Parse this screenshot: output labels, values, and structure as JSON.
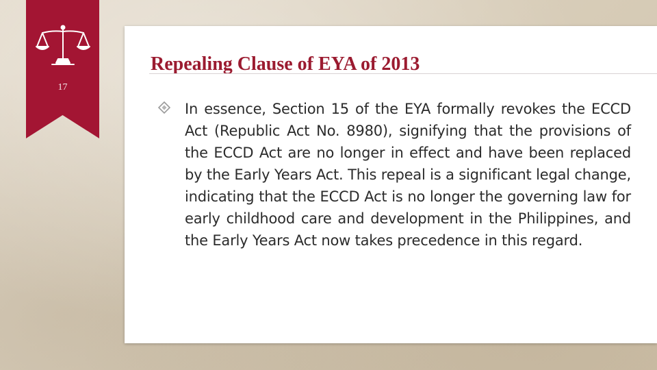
{
  "slide": {
    "number": "17",
    "title": "Repealing Clause of EYA of 2013",
    "body": "In essence, Section 15 of the EYA formally revokes the ECCD Act (Republic Act No. 8980), signifying that the provisions of the ECCD Act are no longer in effect and have been replaced by the Early Years Act. This repeal is a significant legal change, indicating that the ECCD Act is no longer the governing law for early childhood care and development in the Philippines, and the Early Years Act now takes precedence in this regard."
  },
  "icons": {
    "banner_emblem": "scales-of-justice-icon",
    "bullet": "diamond-bullet-icon"
  },
  "colors": {
    "accent": "#9b1b30",
    "banner": "#a31533",
    "bullet": "#9a9a9a"
  }
}
